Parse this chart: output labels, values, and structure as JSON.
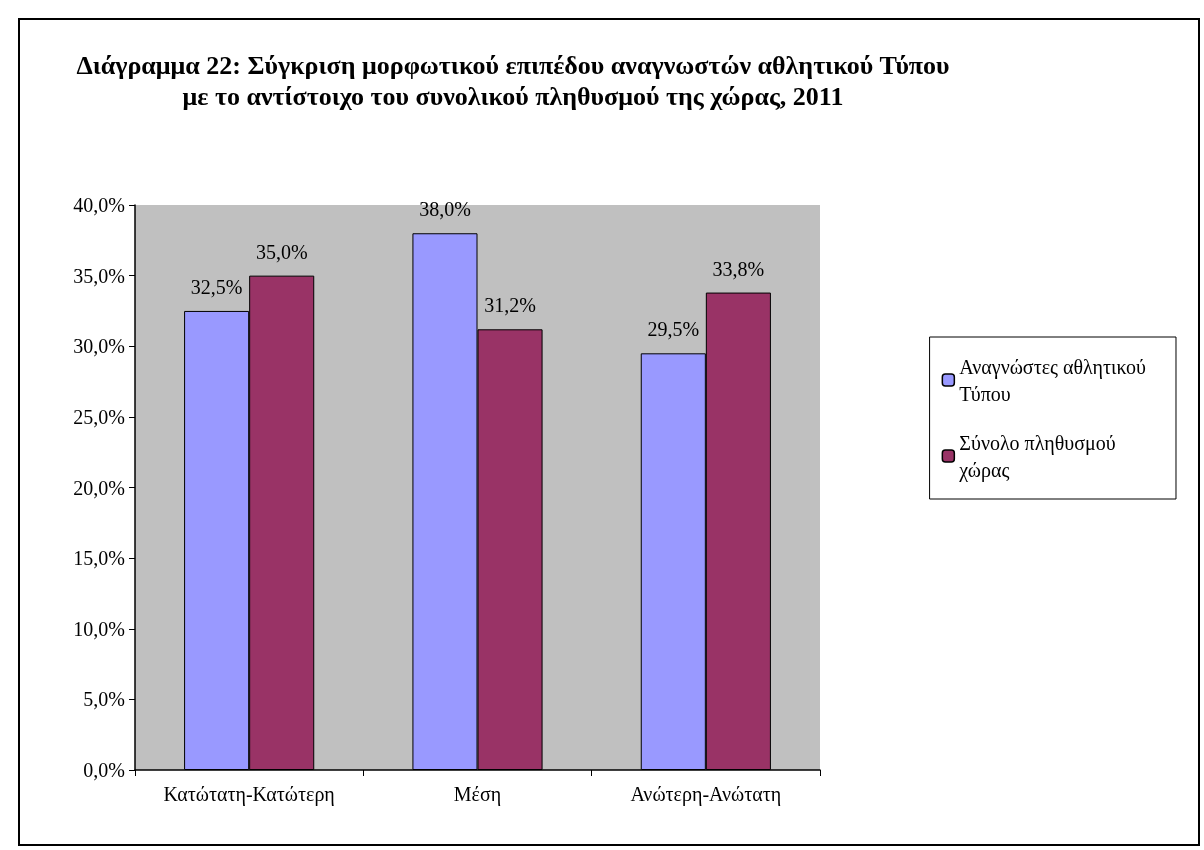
{
  "chart_data": {
    "type": "bar",
    "title": "Διάγραμμα 22: Σύγκριση μορφωτικού επιπέδου αναγνωστών αθλητικού Τύπου με το αντίστοιχο του συνολικού πληθυσμού της χώρας, 2011",
    "categories": [
      "Κατώτατη-Κατώτερη",
      "Μέση",
      "Ανώτερη-Ανώτατη"
    ],
    "series": [
      {
        "name": "Αναγνώστες αθλητικού Τύπου",
        "color": "#9999ff",
        "values": [
          32.5,
          38.0,
          29.5
        ],
        "value_labels": [
          "32,5%",
          "38,0%",
          "29,5%"
        ]
      },
      {
        "name": "Σύνολο πληθυσμού χώρας",
        "color": "#993366",
        "values": [
          35.0,
          31.2,
          33.8
        ],
        "value_labels": [
          "35,0%",
          "31,2%",
          "33,8%"
        ]
      }
    ],
    "ylim": [
      0,
      40
    ],
    "yticks": [
      {
        "value": 0,
        "label": "0,0%"
      },
      {
        "value": 5,
        "label": "5,0%"
      },
      {
        "value": 10,
        "label": "10,0%"
      },
      {
        "value": 15,
        "label": "15,0%"
      },
      {
        "value": 20,
        "label": "20,0%"
      },
      {
        "value": 25,
        "label": "25,0%"
      },
      {
        "value": 30,
        "label": "30,0%"
      },
      {
        "value": 35,
        "label": "35,0%"
      },
      {
        "value": 40,
        "label": "40,0%"
      }
    ],
    "legend": "right"
  }
}
